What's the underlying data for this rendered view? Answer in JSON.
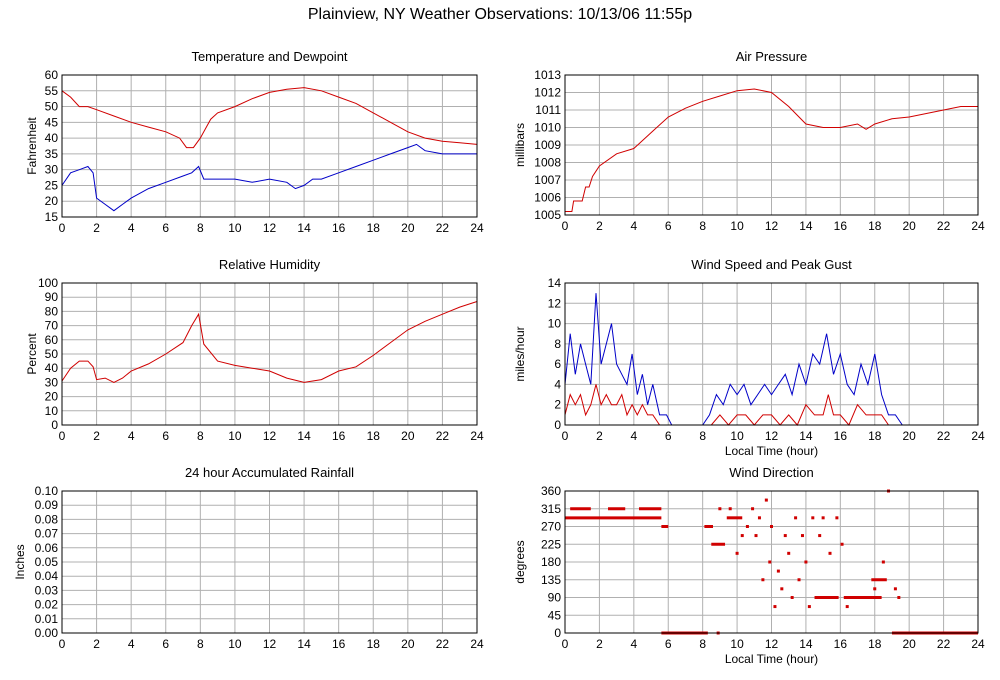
{
  "page": {
    "title": "Plainview, NY Weather Observations: 10/13/06 11:55p"
  },
  "colors": {
    "red": "#d00000",
    "blue": "#0000c8",
    "grid": "#b0b0b0",
    "frame": "#000000"
  },
  "chart_data": [
    {
      "id": "temp",
      "type": "line",
      "title": "Temperature and Dewpoint",
      "xlabel": "",
      "ylabel": "Fahrenheit",
      "xlim": [
        0,
        24
      ],
      "ylim": [
        15,
        60
      ],
      "xticks": [
        0,
        2,
        4,
        6,
        8,
        10,
        12,
        14,
        16,
        18,
        20,
        22,
        24
      ],
      "yticks": [
        15,
        20,
        25,
        30,
        35,
        40,
        45,
        50,
        55,
        60
      ],
      "grid": true,
      "series": [
        {
          "color": "#d00000",
          "x": [
            0,
            0.5,
            1,
            1.5,
            2,
            3,
            4,
            5,
            6,
            6.8,
            7.2,
            7.6,
            8,
            8.6,
            9,
            10,
            11,
            12,
            13,
            14,
            15,
            16,
            17,
            18,
            19,
            20,
            21,
            22,
            23,
            24
          ],
          "y": [
            55,
            53,
            50,
            50,
            49,
            47,
            45,
            43.5,
            42,
            40,
            37,
            37,
            40,
            46,
            48,
            50,
            52.5,
            54.5,
            55.5,
            56,
            55,
            53,
            51,
            48,
            45,
            42,
            40,
            39,
            38.5,
            38
          ]
        },
        {
          "color": "#0000c8",
          "x": [
            0,
            0.5,
            1,
            1.5,
            1.8,
            2,
            2.5,
            3,
            3.5,
            4,
            5,
            6,
            7,
            7.5,
            7.9,
            8.2,
            9,
            10,
            11,
            12,
            13,
            13.5,
            14,
            14.5,
            15,
            16,
            17,
            18,
            19,
            20,
            20.5,
            21,
            22,
            23,
            24
          ],
          "y": [
            25,
            29,
            30,
            31,
            29,
            21,
            19,
            17,
            19,
            21,
            24,
            26,
            28,
            29,
            31,
            27,
            27,
            27,
            26,
            27,
            26,
            24,
            25,
            27,
            27,
            29,
            31,
            33,
            35,
            37,
            38,
            36,
            35,
            35,
            35
          ]
        }
      ]
    },
    {
      "id": "pressure",
      "type": "line",
      "title": "Air Pressure",
      "xlabel": "",
      "ylabel": "millibars",
      "xlim": [
        0,
        24
      ],
      "ylim": [
        1005,
        1013
      ],
      "xticks": [
        0,
        2,
        4,
        6,
        8,
        10,
        12,
        14,
        16,
        18,
        20,
        22,
        24
      ],
      "yticks": [
        1005,
        1006,
        1007,
        1008,
        1009,
        1010,
        1011,
        1012,
        1013
      ],
      "grid": true,
      "series": [
        {
          "color": "#d00000",
          "x": [
            0,
            0.4,
            0.5,
            1,
            1.2,
            1.4,
            1.6,
            2,
            3,
            4,
            5,
            6,
            7,
            8,
            9,
            10,
            11,
            12,
            13,
            14,
            15,
            16,
            17,
            17.5,
            18,
            19,
            20,
            21,
            22,
            23,
            24
          ],
          "y": [
            1005.2,
            1005.2,
            1005.8,
            1005.8,
            1006.6,
            1006.6,
            1007.2,
            1007.8,
            1008.5,
            1008.8,
            1009.7,
            1010.6,
            1011.1,
            1011.5,
            1011.8,
            1012.1,
            1012.2,
            1012,
            1011.2,
            1010.2,
            1010,
            1010,
            1010.2,
            1009.9,
            1010.2,
            1010.5,
            1010.6,
            1010.8,
            1011,
            1011.2,
            1011.2
          ]
        }
      ]
    },
    {
      "id": "rh",
      "type": "line",
      "title": "Relative Humidity",
      "xlabel": "",
      "ylabel": "Percent",
      "xlim": [
        0,
        24
      ],
      "ylim": [
        0,
        100
      ],
      "xticks": [
        0,
        2,
        4,
        6,
        8,
        10,
        12,
        14,
        16,
        18,
        20,
        22,
        24
      ],
      "yticks": [
        0,
        10,
        20,
        30,
        40,
        50,
        60,
        70,
        80,
        90,
        100
      ],
      "grid": true,
      "series": [
        {
          "color": "#d00000",
          "x": [
            0,
            0.5,
            1,
            1.5,
            1.8,
            2,
            2.5,
            3,
            3.5,
            4,
            5,
            6,
            7,
            7.5,
            7.9,
            8.2,
            9,
            10,
            11,
            12,
            13,
            14,
            15,
            16,
            17,
            18,
            19,
            20,
            21,
            22,
            23,
            24
          ],
          "y": [
            31,
            40,
            45,
            45,
            41,
            32,
            33,
            30,
            33,
            38,
            43,
            50,
            58,
            70,
            78,
            57,
            45,
            42,
            40,
            38,
            33,
            30,
            32,
            38,
            41,
            49,
            58,
            67,
            73,
            78,
            83,
            87
          ]
        }
      ]
    },
    {
      "id": "wind",
      "type": "line",
      "title": "Wind Speed and Peak Gust",
      "xlabel": "Local Time (hour)",
      "ylabel": "miles/hour",
      "xlim": [
        0,
        24
      ],
      "ylim": [
        0,
        14
      ],
      "xticks": [
        0,
        2,
        4,
        6,
        8,
        10,
        12,
        14,
        16,
        18,
        20,
        22,
        24
      ],
      "yticks": [
        0,
        2,
        4,
        6,
        8,
        10,
        12,
        14
      ],
      "grid": true,
      "series": [
        {
          "color": "#0000c8",
          "x": [
            0,
            0.3,
            0.6,
            0.9,
            1.2,
            1.5,
            1.8,
            2.1,
            2.4,
            2.7,
            3.0,
            3.3,
            3.6,
            3.9,
            4.2,
            4.5,
            4.8,
            5.1,
            5.5,
            5.9,
            6.2,
            8.0,
            8.4,
            8.8,
            9.2,
            9.6,
            10.0,
            10.4,
            10.8,
            11.2,
            11.6,
            12.0,
            12.4,
            12.8,
            13.2,
            13.6,
            14.0,
            14.4,
            14.8,
            15.2,
            15.6,
            16.0,
            16.4,
            16.8,
            17.2,
            17.6,
            18.0,
            18.4,
            18.8,
            19.2,
            19.6
          ],
          "y": [
            4,
            9,
            5,
            8,
            6,
            4,
            13,
            6,
            8,
            10,
            6,
            5,
            4,
            7,
            3,
            5,
            2,
            4,
            1,
            1,
            0,
            0,
            1,
            3,
            2,
            4,
            3,
            4,
            2,
            3,
            4,
            3,
            4,
            5,
            3,
            6,
            4,
            7,
            6,
            9,
            5,
            7,
            4,
            3,
            6,
            4,
            7,
            3,
            1,
            1,
            0
          ]
        },
        {
          "color": "#d00000",
          "x": [
            0,
            0.3,
            0.6,
            0.9,
            1.2,
            1.5,
            1.8,
            2.1,
            2.4,
            2.7,
            3.0,
            3.3,
            3.6,
            3.9,
            4.2,
            4.5,
            4.8,
            5.1,
            5.5,
            8.0,
            8.5,
            9.0,
            9.5,
            10.0,
            10.5,
            11.0,
            11.5,
            12.0,
            12.5,
            13.0,
            13.5,
            14.0,
            14.5,
            15.0,
            15.3,
            15.6,
            16.0,
            16.5,
            17.0,
            17.5,
            18.0,
            18.4,
            18.8
          ],
          "y": [
            1,
            3,
            2,
            3,
            1,
            2,
            4,
            2,
            3,
            2,
            2,
            3,
            1,
            2,
            1,
            2,
            1,
            1,
            0,
            0,
            0,
            1,
            0,
            1,
            1,
            0,
            1,
            1,
            0,
            1,
            0,
            2,
            1,
            1,
            3,
            1,
            1,
            0,
            2,
            1,
            1,
            1,
            0
          ]
        }
      ]
    },
    {
      "id": "rain",
      "type": "line",
      "title": "24 hour Accumulated Rainfall",
      "xlabel": "",
      "ylabel": "Inches",
      "xlim": [
        0,
        24
      ],
      "ylim": [
        0,
        0.1
      ],
      "xticks": [
        0,
        2,
        4,
        6,
        8,
        10,
        12,
        14,
        16,
        18,
        20,
        22,
        24
      ],
      "yticks": [
        0,
        0.01,
        0.02,
        0.03,
        0.04,
        0.05,
        0.06,
        0.07,
        0.08,
        0.09,
        0.1
      ],
      "ytick_labels": [
        "0.00",
        "0.01",
        "0.02",
        "0.03",
        "0.04",
        "0.05",
        "0.06",
        "0.07",
        "0.08",
        "0.09",
        "0.10"
      ],
      "grid": true,
      "series": [
        {
          "color": "#d00000",
          "x": [
            0,
            24
          ],
          "y": [
            0,
            0
          ]
        }
      ]
    },
    {
      "id": "direction",
      "type": "scatter",
      "title": "Wind Direction",
      "xlabel": "Local Time (hour)",
      "ylabel": "degrees",
      "xlim": [
        0,
        24
      ],
      "ylim": [
        0,
        360
      ],
      "xticks": [
        0,
        2,
        4,
        6,
        8,
        10,
        12,
        14,
        16,
        18,
        20,
        22,
        24
      ],
      "yticks": [
        0,
        45,
        90,
        135,
        180,
        225,
        270,
        315,
        360
      ],
      "grid": true,
      "series": [
        {
          "color": "#d00000",
          "segments": [
            {
              "x0": 0,
              "x1": 5.6,
              "y": 292
            },
            {
              "x0": 0.3,
              "x1": 1.5,
              "y": 315
            },
            {
              "x0": 2.5,
              "x1": 3.5,
              "y": 315
            },
            {
              "x0": 4.3,
              "x1": 5.6,
              "y": 315
            },
            {
              "x0": 5.6,
              "x1": 6.0,
              "y": 270
            },
            {
              "x0": 5.6,
              "x1": 8.3,
              "y": 0
            },
            {
              "x0": 8.1,
              "x1": 8.6,
              "y": 270
            },
            {
              "x0": 8.5,
              "x1": 9.3,
              "y": 225
            },
            {
              "x0": 9.4,
              "x1": 10.3,
              "y": 292
            },
            {
              "x0": 14.5,
              "x1": 15.9,
              "y": 90
            },
            {
              "x0": 16.2,
              "x1": 18.4,
              "y": 90
            },
            {
              "x0": 17.8,
              "x1": 18.7,
              "y": 135
            },
            {
              "x0": 19.0,
              "x1": 24,
              "y": 0
            }
          ],
          "points": [
            {
              "x": 8.9,
              "y": 0
            },
            {
              "x": 9.0,
              "y": 315
            },
            {
              "x": 9.6,
              "y": 315
            },
            {
              "x": 10.0,
              "y": 202
            },
            {
              "x": 10.3,
              "y": 247
            },
            {
              "x": 10.6,
              "y": 270
            },
            {
              "x": 10.9,
              "y": 315
            },
            {
              "x": 11.1,
              "y": 247
            },
            {
              "x": 11.3,
              "y": 292
            },
            {
              "x": 11.5,
              "y": 135
            },
            {
              "x": 11.7,
              "y": 337
            },
            {
              "x": 11.9,
              "y": 180
            },
            {
              "x": 12.0,
              "y": 270
            },
            {
              "x": 12.2,
              "y": 67
            },
            {
              "x": 12.4,
              "y": 157
            },
            {
              "x": 12.6,
              "y": 112
            },
            {
              "x": 12.8,
              "y": 247
            },
            {
              "x": 13.0,
              "y": 202
            },
            {
              "x": 13.2,
              "y": 90
            },
            {
              "x": 13.4,
              "y": 292
            },
            {
              "x": 13.6,
              "y": 135
            },
            {
              "x": 13.8,
              "y": 247
            },
            {
              "x": 14.0,
              "y": 180
            },
            {
              "x": 14.2,
              "y": 67
            },
            {
              "x": 14.4,
              "y": 292
            },
            {
              "x": 14.8,
              "y": 247
            },
            {
              "x": 15.0,
              "y": 292
            },
            {
              "x": 15.4,
              "y": 202
            },
            {
              "x": 15.8,
              "y": 292
            },
            {
              "x": 16.1,
              "y": 225
            },
            {
              "x": 16.4,
              "y": 67
            },
            {
              "x": 18.0,
              "y": 112
            },
            {
              "x": 18.5,
              "y": 180
            },
            {
              "x": 18.8,
              "y": 360
            },
            {
              "x": 19.2,
              "y": 112
            },
            {
              "x": 19.4,
              "y": 90
            }
          ]
        }
      ]
    }
  ]
}
